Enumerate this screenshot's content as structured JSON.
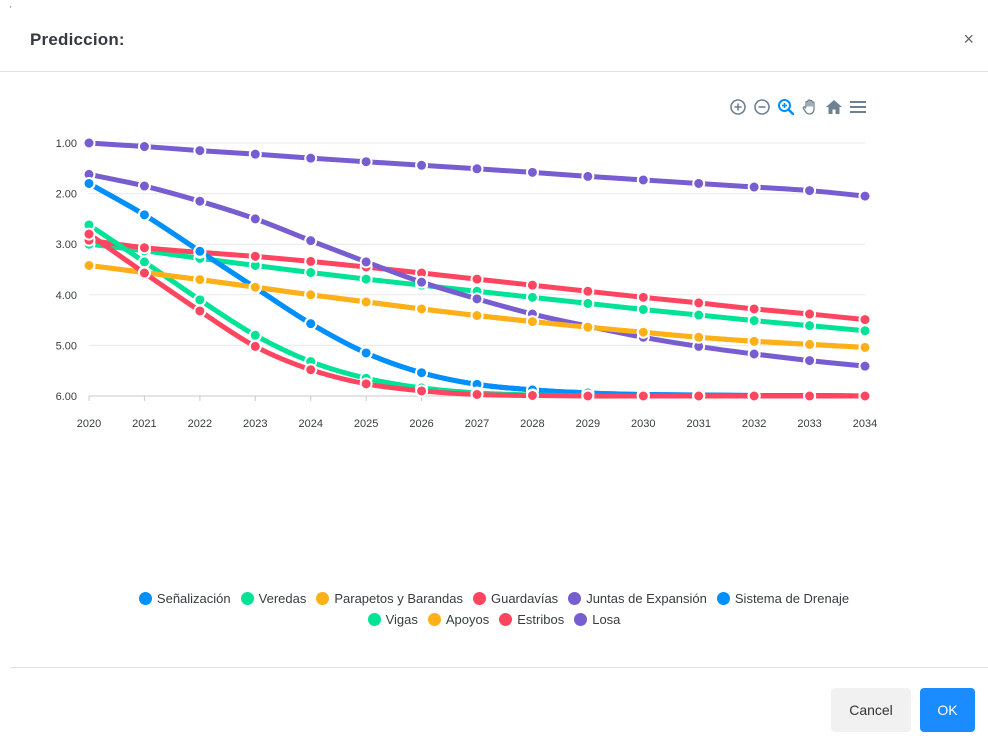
{
  "modal": {
    "title": "Prediccion:",
    "close_label": "×",
    "corner_mark": "'"
  },
  "buttons": {
    "cancel": "Cancel",
    "ok": "OK"
  },
  "toolbar": {
    "icons": [
      "zoom-in-icon",
      "zoom-out-icon",
      "zoom-selection-icon",
      "pan-hand-icon",
      "home-reset-icon",
      "menu-icon"
    ],
    "color": "#6e8192",
    "active_color": "#008ffb"
  },
  "chart_data": {
    "type": "line",
    "x": [
      "2020",
      "2021",
      "2022",
      "2023",
      "2024",
      "2025",
      "2026",
      "2027",
      "2028",
      "2029",
      "2030",
      "2031",
      "2032",
      "2033",
      "2034"
    ],
    "y_ticks": [
      "1.00",
      "2.00",
      "3.00",
      "4.00",
      "5.00",
      "6.00"
    ],
    "ylim": [
      1,
      6
    ],
    "y_reversed": true,
    "grid": true,
    "legend_position": "bottom",
    "series": [
      {
        "name": "Señalización",
        "color": "#008ffb",
        "values": [
          1.8,
          2.42,
          3.14,
          3.86,
          4.57,
          5.15,
          5.54,
          5.77,
          5.88,
          5.94,
          5.97,
          5.98,
          5.99,
          5.99,
          6.0
        ]
      },
      {
        "name": "Veredas",
        "color": "#00e396",
        "values": [
          3.0,
          3.13,
          3.28,
          3.42,
          3.56,
          3.69,
          3.81,
          3.93,
          4.05,
          4.17,
          4.29,
          4.4,
          4.51,
          4.61,
          4.71
        ]
      },
      {
        "name": "Parapetos y Barandas",
        "color": "#feb019",
        "values": [
          3.42,
          3.56,
          3.7,
          3.85,
          4.0,
          4.14,
          4.28,
          4.41,
          4.53,
          4.64,
          4.74,
          4.84,
          4.92,
          4.98,
          5.04
        ]
      },
      {
        "name": "Guardavías",
        "color": "#ff4560",
        "values": [
          2.92,
          3.07,
          3.16,
          3.24,
          3.34,
          3.45,
          3.57,
          3.69,
          3.81,
          3.93,
          4.05,
          4.16,
          4.28,
          4.38,
          4.49
        ]
      },
      {
        "name": "Juntas de Expansión",
        "color": "#775dd0",
        "values": [
          1.62,
          1.85,
          2.15,
          2.5,
          2.93,
          3.35,
          3.75,
          4.08,
          4.38,
          4.62,
          4.84,
          5.02,
          5.17,
          5.3,
          5.41
        ]
      },
      {
        "name": "Sistema de Drenaje",
        "color": "#008ffb",
        "values": [
          1.8,
          2.42,
          3.14,
          3.86,
          4.57,
          5.15,
          5.54,
          5.77,
          5.88,
          5.94,
          5.97,
          5.98,
          5.99,
          5.99,
          6.0
        ]
      },
      {
        "name": "Vigas",
        "color": "#00e396",
        "values": [
          2.62,
          3.35,
          4.1,
          4.8,
          5.32,
          5.65,
          5.84,
          5.94,
          5.98,
          6.0,
          6.0,
          6.0,
          6.0,
          6.0,
          6.0
        ]
      },
      {
        "name": "Apoyos",
        "color": "#feb019",
        "values": [
          3.42,
          3.56,
          3.7,
          3.85,
          4.0,
          4.14,
          4.28,
          4.41,
          4.53,
          4.64,
          4.74,
          4.84,
          4.92,
          4.98,
          5.04
        ]
      },
      {
        "name": "Estribos",
        "color": "#ff4560",
        "values": [
          2.8,
          3.57,
          4.32,
          5.02,
          5.48,
          5.76,
          5.9,
          5.97,
          5.99,
          6.0,
          6.0,
          6.0,
          6.0,
          6.0,
          6.0
        ]
      },
      {
        "name": "Losa",
        "color": "#775dd0",
        "values": [
          1.0,
          1.07,
          1.15,
          1.22,
          1.3,
          1.37,
          1.44,
          1.51,
          1.58,
          1.66,
          1.73,
          1.8,
          1.87,
          1.94,
          2.05
        ]
      }
    ],
    "legend_rows": [
      [
        0,
        1,
        2,
        3,
        4,
        5
      ],
      [
        6,
        7,
        8,
        9
      ]
    ]
  }
}
